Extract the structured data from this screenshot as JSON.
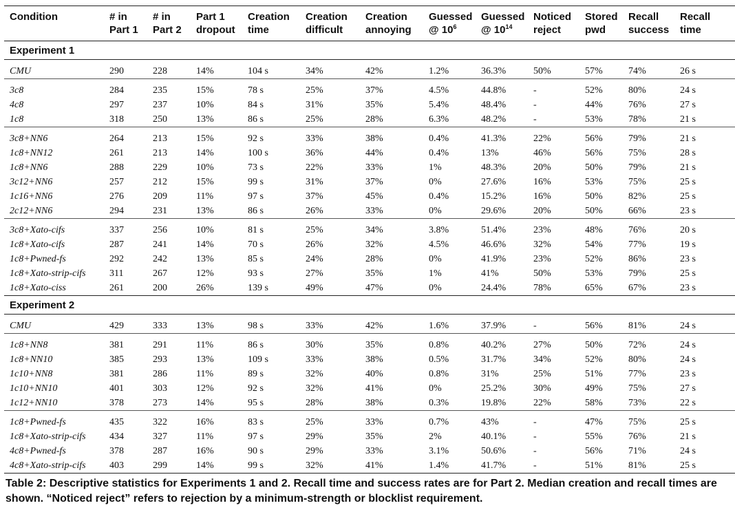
{
  "headers": [
    {
      "line1": "Condition",
      "line2": "",
      "sup": ""
    },
    {
      "line1": "# in",
      "line2": "Part 1",
      "sup": ""
    },
    {
      "line1": "# in",
      "line2": "Part 2",
      "sup": ""
    },
    {
      "line1": "Part 1",
      "line2": "dropout",
      "sup": ""
    },
    {
      "line1": "Creation",
      "line2": "time",
      "sup": ""
    },
    {
      "line1": "Creation",
      "line2": "difficult",
      "sup": ""
    },
    {
      "line1": "Creation",
      "line2": "annoying",
      "sup": ""
    },
    {
      "line1": "Guessed",
      "line2": "@ 10",
      "sup": "6"
    },
    {
      "line1": "Guessed",
      "line2": "@ 10",
      "sup": "14"
    },
    {
      "line1": "Noticed",
      "line2": "reject",
      "sup": ""
    },
    {
      "line1": "Stored",
      "line2": "pwd",
      "sup": ""
    },
    {
      "line1": "Recall",
      "line2": "success",
      "sup": ""
    },
    {
      "line1": "Recall",
      "line2": "time",
      "sup": ""
    }
  ],
  "sections": [
    {
      "title": "Experiment 1",
      "groups": [
        [
          [
            "CMU",
            "290",
            "228",
            "14%",
            "104 s",
            "34%",
            "42%",
            "1.2%",
            "36.3%",
            "50%",
            "57%",
            "74%",
            "26 s"
          ]
        ],
        [
          [
            "3c8",
            "284",
            "235",
            "15%",
            "78 s",
            "25%",
            "37%",
            "4.5%",
            "44.8%",
            "-",
            "52%",
            "80%",
            "24 s"
          ],
          [
            "4c8",
            "297",
            "237",
            "10%",
            "84 s",
            "31%",
            "35%",
            "5.4%",
            "48.4%",
            "-",
            "44%",
            "76%",
            "27 s"
          ],
          [
            "1c8",
            "318",
            "250",
            "13%",
            "86 s",
            "25%",
            "28%",
            "6.3%",
            "48.2%",
            "-",
            "53%",
            "78%",
            "21 s"
          ]
        ],
        [
          [
            "3c8+NN6",
            "264",
            "213",
            "15%",
            "92 s",
            "33%",
            "38%",
            "0.4%",
            "41.3%",
            "22%",
            "56%",
            "79%",
            "21 s"
          ],
          [
            "1c8+NN12",
            "261",
            "213",
            "14%",
            "100 s",
            "36%",
            "44%",
            "0.4%",
            "13%",
            "46%",
            "56%",
            "75%",
            "28 s"
          ],
          [
            "1c8+NN6",
            "288",
            "229",
            "10%",
            "73 s",
            "22%",
            "33%",
            "1%",
            "48.3%",
            "20%",
            "50%",
            "79%",
            "21 s"
          ],
          [
            "3c12+NN6",
            "257",
            "212",
            "15%",
            "99 s",
            "31%",
            "37%",
            "0%",
            "27.6%",
            "16%",
            "53%",
            "75%",
            "25 s"
          ],
          [
            "1c16+NN6",
            "276",
            "209",
            "11%",
            "97 s",
            "37%",
            "45%",
            "0.4%",
            "15.2%",
            "16%",
            "50%",
            "82%",
            "25 s"
          ],
          [
            "2c12+NN6",
            "294",
            "231",
            "13%",
            "86 s",
            "26%",
            "33%",
            "0%",
            "29.6%",
            "20%",
            "50%",
            "66%",
            "23 s"
          ]
        ],
        [
          [
            "3c8+Xato-cifs",
            "337",
            "256",
            "10%",
            "81 s",
            "25%",
            "34%",
            "3.8%",
            "51.4%",
            "23%",
            "48%",
            "76%",
            "20 s"
          ],
          [
            "1c8+Xato-cifs",
            "287",
            "241",
            "14%",
            "70 s",
            "26%",
            "32%",
            "4.5%",
            "46.6%",
            "32%",
            "54%",
            "77%",
            "19 s"
          ],
          [
            "1c8+Pwned-fs",
            "292",
            "242",
            "13%",
            "85 s",
            "24%",
            "28%",
            "0%",
            "41.9%",
            "23%",
            "52%",
            "86%",
            "23 s"
          ],
          [
            "1c8+Xato-strip-cifs",
            "311",
            "267",
            "12%",
            "93 s",
            "27%",
            "35%",
            "1%",
            "41%",
            "50%",
            "53%",
            "79%",
            "25 s"
          ],
          [
            "1c8+Xato-ciss",
            "261",
            "200",
            "26%",
            "139 s",
            "49%",
            "47%",
            "0%",
            "24.4%",
            "78%",
            "65%",
            "67%",
            "23 s"
          ]
        ]
      ]
    },
    {
      "title": "Experiment 2",
      "groups": [
        [
          [
            "CMU",
            "429",
            "333",
            "13%",
            "98 s",
            "33%",
            "42%",
            "1.6%",
            "37.9%",
            "-",
            "56%",
            "81%",
            "24 s"
          ]
        ],
        [
          [
            "1c8+NN8",
            "381",
            "291",
            "11%",
            "86 s",
            "30%",
            "35%",
            "0.8%",
            "40.2%",
            "27%",
            "50%",
            "72%",
            "24 s"
          ],
          [
            "1c8+NN10",
            "385",
            "293",
            "13%",
            "109 s",
            "33%",
            "38%",
            "0.5%",
            "31.7%",
            "34%",
            "52%",
            "80%",
            "24 s"
          ],
          [
            "1c10+NN8",
            "381",
            "286",
            "11%",
            "89 s",
            "32%",
            "40%",
            "0.8%",
            "31%",
            "25%",
            "51%",
            "77%",
            "23 s"
          ],
          [
            "1c10+NN10",
            "401",
            "303",
            "12%",
            "92 s",
            "32%",
            "41%",
            "0%",
            "25.2%",
            "30%",
            "49%",
            "75%",
            "27 s"
          ],
          [
            "1c12+NN10",
            "378",
            "273",
            "14%",
            "95 s",
            "28%",
            "38%",
            "0.3%",
            "19.8%",
            "22%",
            "58%",
            "73%",
            "22 s"
          ]
        ],
        [
          [
            "1c8+Pwned-fs",
            "435",
            "322",
            "16%",
            "83 s",
            "25%",
            "33%",
            "0.7%",
            "43%",
            "-",
            "47%",
            "75%",
            "25 s"
          ],
          [
            "1c8+Xato-strip-cifs",
            "434",
            "327",
            "11%",
            "97 s",
            "29%",
            "35%",
            "2%",
            "40.1%",
            "-",
            "55%",
            "76%",
            "21 s"
          ],
          [
            "4c8+Pwned-fs",
            "378",
            "287",
            "16%",
            "90 s",
            "29%",
            "33%",
            "3.1%",
            "50.6%",
            "-",
            "56%",
            "71%",
            "24 s"
          ],
          [
            "4c8+Xato-strip-cifs",
            "403",
            "299",
            "14%",
            "99 s",
            "32%",
            "41%",
            "1.4%",
            "41.7%",
            "-",
            "51%",
            "81%",
            "25 s"
          ]
        ]
      ]
    }
  ],
  "caption": {
    "label": "Table 2:",
    "text": "Descriptive statistics for Experiments 1 and 2. Recall time and success rates are for Part 2. Median creation and recall times are shown. “Noticed reject” refers to rejection by a minimum-strength or blocklist requirement."
  }
}
